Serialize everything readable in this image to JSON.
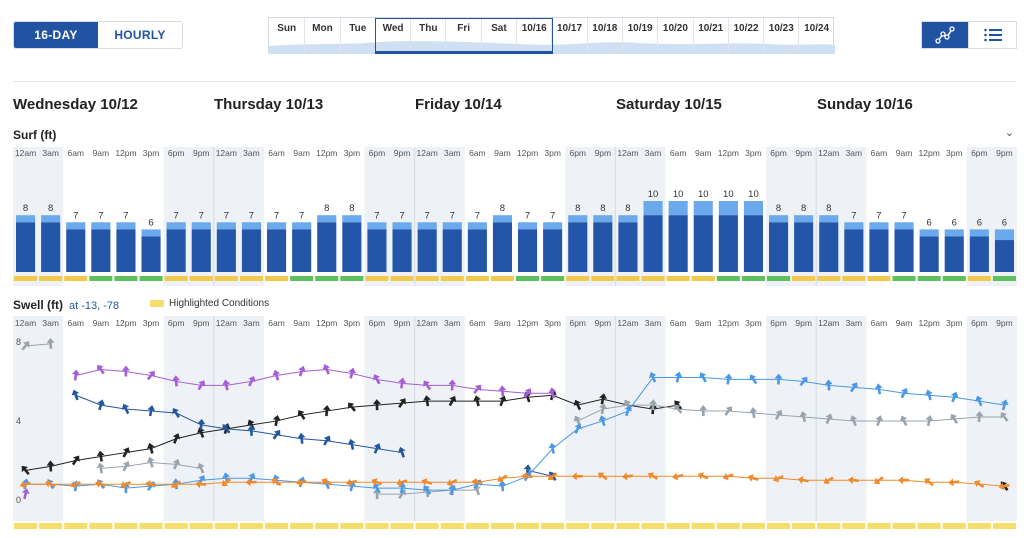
{
  "toggle": {
    "active": "16-DAY",
    "inactive": "HOURLY"
  },
  "day_strip": [
    "Sun",
    "Mon",
    "Tue",
    "Wed",
    "Thu",
    "Fri",
    "Sat",
    "10/16",
    "10/17",
    "10/18",
    "10/19",
    "10/20",
    "10/21",
    "10/22",
    "10/23",
    "10/24"
  ],
  "view_buttons": {
    "chart_icon": "line-graph-icon",
    "list_icon": "list-icon"
  },
  "days": [
    "Wednesday 10/12",
    "Thursday 10/13",
    "Friday 10/14",
    "Saturday 10/15",
    "Sunday 10/16"
  ],
  "sections": {
    "surf_title": "Surf (ft)",
    "swell_title": "Swell (ft)",
    "swell_location": "at -13, -78",
    "legend_label": "Highlighted Conditions"
  },
  "time_labels": [
    "12am",
    "3am",
    "6am",
    "9am",
    "12pm",
    "3pm",
    "6pm",
    "9pm"
  ],
  "colors": {
    "surf_dark": "#2356a8",
    "surf_light": "#6aa9ec",
    "good": "#5cc05c",
    "fair": "#f2c94c",
    "night": "#eef2f7",
    "highlight": "#f6de6e"
  },
  "chart_data": [
    {
      "type": "bar",
      "title": "Surf (ft)",
      "categories_per_day": [
        "12am",
        "3am",
        "6am",
        "9am",
        "12pm",
        "3pm",
        "6pm",
        "9pm"
      ],
      "days": [
        "Wednesday 10/12",
        "Thursday 10/13",
        "Friday 10/14",
        "Saturday 10/15",
        "Sunday 10/16"
      ],
      "max_values": [
        8,
        8,
        7,
        7,
        7,
        6,
        7,
        7,
        7,
        7,
        7,
        7,
        8,
        8,
        7,
        7,
        7,
        7,
        7,
        8,
        7,
        7,
        8,
        8,
        8,
        10,
        10,
        10,
        10,
        10,
        8,
        8,
        8,
        7,
        7,
        7,
        6,
        6,
        6,
        6
      ],
      "min_values": [
        7,
        7,
        6,
        6,
        6,
        5,
        6,
        6,
        6,
        6,
        6,
        6,
        7,
        7,
        6,
        6,
        6,
        6,
        6,
        7,
        6,
        6,
        7,
        7,
        7,
        8,
        8,
        8,
        8,
        8,
        7,
        7,
        7,
        6,
        6,
        6,
        5,
        5,
        5,
        4.5
      ],
      "condition_ratings": [
        "fair",
        "fair",
        "fair",
        "good",
        "good",
        "good",
        "fair",
        "fair",
        "fair",
        "fair",
        "fair",
        "good",
        "good",
        "good",
        "fair",
        "fair",
        "fair",
        "fair",
        "fair",
        "fair",
        "good",
        "good",
        "fair",
        "fair",
        "fair",
        "fair",
        "fair",
        "fair",
        "good",
        "good",
        "good",
        "fair",
        "fair",
        "fair",
        "fair",
        "good",
        "good",
        "good",
        "fair",
        "good"
      ],
      "ylim": [
        0,
        10
      ]
    },
    {
      "type": "line",
      "title": "Swell (ft)",
      "y_ticks": [
        0,
        4,
        8
      ],
      "ylim": [
        0,
        8.5
      ],
      "series": [
        {
          "color": "#222222",
          "values": [
            1.5,
            1.7,
            2.0,
            2.2,
            2.4,
            2.6,
            3.1,
            3.4,
            3.6,
            3.8,
            4.0,
            4.3,
            4.5,
            4.7,
            4.8,
            4.9,
            5.0,
            5.0,
            5.0,
            5.0,
            5.2,
            5.3,
            4.8,
            5.1,
            4.8,
            4.6,
            4.8,
            null,
            null,
            null,
            null,
            null,
            null,
            null,
            null,
            null,
            null,
            null,
            null,
            0.7
          ]
        },
        {
          "color": "#a55fd6",
          "values": [
            0.3,
            null,
            6.3,
            6.6,
            6.5,
            6.3,
            6.0,
            5.8,
            5.8,
            6.0,
            6.3,
            6.5,
            6.6,
            6.4,
            6.1,
            5.9,
            5.8,
            5.8,
            5.6,
            5.5,
            5.4,
            5.4,
            null,
            null,
            null,
            null,
            null,
            null,
            null,
            null,
            null,
            null,
            null,
            null,
            null,
            null,
            null,
            null,
            null,
            null
          ]
        },
        {
          "color": "#23579e",
          "values": [
            null,
            null,
            5.3,
            4.8,
            4.6,
            4.5,
            4.4,
            3.8,
            3.6,
            3.5,
            3.3,
            3.1,
            3.0,
            2.8,
            2.6,
            2.4,
            null,
            null,
            null,
            null,
            1.5,
            1.2,
            null,
            null,
            null,
            null,
            null,
            null,
            null,
            null,
            null,
            null,
            null,
            null,
            null,
            null,
            null,
            null,
            null,
            null
          ]
        },
        {
          "color": "#9aa4ae",
          "values": [
            7.8,
            7.9,
            null,
            1.6,
            1.7,
            1.9,
            1.8,
            1.6,
            null,
            null,
            null,
            null,
            null,
            null,
            0.3,
            0.3,
            0.4,
            0.5,
            0.5,
            null,
            null,
            null,
            4.0,
            4.6,
            4.8,
            4.8,
            4.6,
            4.5,
            4.5,
            4.4,
            4.3,
            4.2,
            4.1,
            4.0,
            4.0,
            4.0,
            4.0,
            4.1,
            4.2,
            4.2
          ]
        },
        {
          "color": "#4a98e8",
          "values": [
            0.8,
            0.8,
            0.7,
            0.8,
            0.6,
            0.7,
            0.8,
            1.0,
            1.1,
            1.1,
            1.0,
            0.9,
            0.8,
            0.7,
            0.6,
            0.6,
            0.5,
            0.5,
            0.8,
            0.7,
            1.2,
            2.6,
            3.6,
            4.0,
            4.5,
            6.2,
            6.2,
            6.2,
            6.1,
            6.1,
            6.1,
            6.0,
            5.8,
            5.7,
            5.6,
            5.4,
            5.3,
            5.2,
            5.0,
            4.8
          ]
        },
        {
          "color": "#f08a2c",
          "values": [
            0.8,
            0.8,
            0.8,
            0.8,
            0.8,
            0.8,
            0.8,
            0.8,
            0.9,
            0.9,
            0.9,
            0.9,
            0.9,
            0.9,
            0.9,
            0.9,
            0.9,
            0.9,
            0.9,
            1.1,
            1.2,
            1.2,
            1.2,
            1.2,
            1.2,
            1.2,
            1.2,
            1.2,
            1.2,
            1.1,
            1.1,
            1.0,
            1.0,
            1.0,
            1.0,
            1.0,
            0.9,
            0.9,
            0.8,
            0.7
          ]
        }
      ]
    }
  ]
}
